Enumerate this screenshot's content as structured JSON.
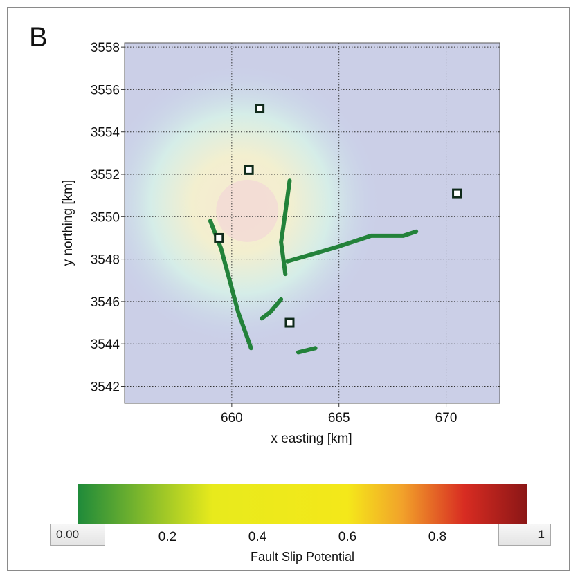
{
  "panel_label": "B",
  "chart_data": {
    "type": "heatmap",
    "xlabel": "x easting [km]",
    "ylabel": "y northing [km]",
    "xlim": [
      655,
      672.5
    ],
    "ylim": [
      3541.2,
      3558.2
    ],
    "xticks": [
      660,
      665,
      670
    ],
    "yticks": [
      3542,
      3544,
      3546,
      3548,
      3550,
      3552,
      3554,
      3556,
      3558
    ],
    "grid": true,
    "wells": [
      {
        "x": 661.3,
        "y": 3555.1
      },
      {
        "x": 660.8,
        "y": 3552.2
      },
      {
        "x": 659.4,
        "y": 3549.0
      },
      {
        "x": 662.7,
        "y": 3545.0
      },
      {
        "x": 670.5,
        "y": 3551.1
      }
    ],
    "faults": [
      {
        "points": [
          [
            659.0,
            3549.8
          ],
          [
            659.5,
            3548.5
          ],
          [
            659.9,
            3547.0
          ],
          [
            660.3,
            3545.5
          ],
          [
            660.9,
            3543.8
          ]
        ]
      },
      {
        "points": [
          [
            662.7,
            3551.7
          ],
          [
            662.5,
            3550.2
          ],
          [
            662.3,
            3548.8
          ],
          [
            662.5,
            3547.3
          ]
        ]
      },
      {
        "points": [
          [
            662.6,
            3547.9
          ],
          [
            664.0,
            3548.3
          ],
          [
            665.0,
            3548.6
          ],
          [
            666.5,
            3549.1
          ],
          [
            668.0,
            3549.1
          ],
          [
            668.6,
            3549.3
          ]
        ]
      },
      {
        "points": [
          [
            661.4,
            3545.2
          ],
          [
            661.8,
            3545.5
          ],
          [
            662.3,
            3546.1
          ]
        ]
      },
      {
        "points": [
          [
            663.1,
            3543.6
          ],
          [
            663.9,
            3543.8
          ]
        ]
      }
    ],
    "hotspot": {
      "x": 660.4,
      "y": 3550.6
    },
    "colorbar": {
      "label": "Fault Slip Potential",
      "min_label": "0.00",
      "max_label": "1",
      "ticks": [
        "0.2",
        "0.4",
        "0.6",
        "0.8"
      ],
      "colors": [
        "#1e8a3a",
        "#e8ea1c",
        "#f4e81a",
        "#f2a32a",
        "#d82c22",
        "#8a1616"
      ]
    }
  }
}
